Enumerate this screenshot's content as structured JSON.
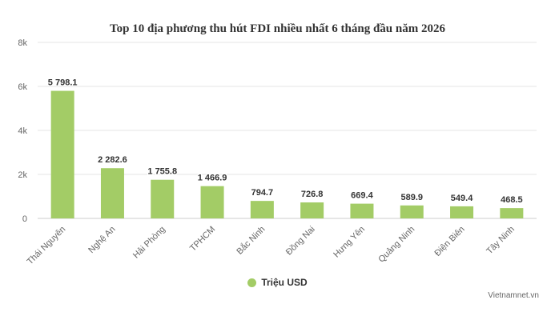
{
  "chart_data": {
    "type": "bar",
    "title": "Top 10 địa phương thu hút FDI nhiều nhất 6 tháng đầu năm 2026",
    "categories": [
      "Thái Nguyên",
      "Nghệ An",
      "Hải Phòng",
      "TPHCM",
      "Bắc Ninh",
      "Đồng Nai",
      "Hưng Yên",
      "Quảng Ninh",
      "Điện Biên",
      "Tây Ninh"
    ],
    "series": [
      {
        "name": "Triệu USD",
        "values": [
          5798.1,
          2282.6,
          1755.8,
          1466.9,
          794.7,
          726.8,
          669.4,
          589.9,
          549.4,
          468.5
        ],
        "labels": [
          "5 798.1",
          "2 282.6",
          "1 755.8",
          "1 466.9",
          "794.7",
          "726.8",
          "669.4",
          "589.9",
          "549.4",
          "468.5"
        ]
      }
    ],
    "ylim": [
      0,
      8000
    ],
    "yticks": [
      0,
      2000,
      4000,
      6000,
      8000
    ],
    "ytick_labels": [
      "0",
      "2k",
      "4k",
      "6k",
      "8k"
    ],
    "grid": true,
    "legend_position": "bottom-center",
    "bar_color": "#a3cc66"
  },
  "credit": "Vietnamnet.vn"
}
